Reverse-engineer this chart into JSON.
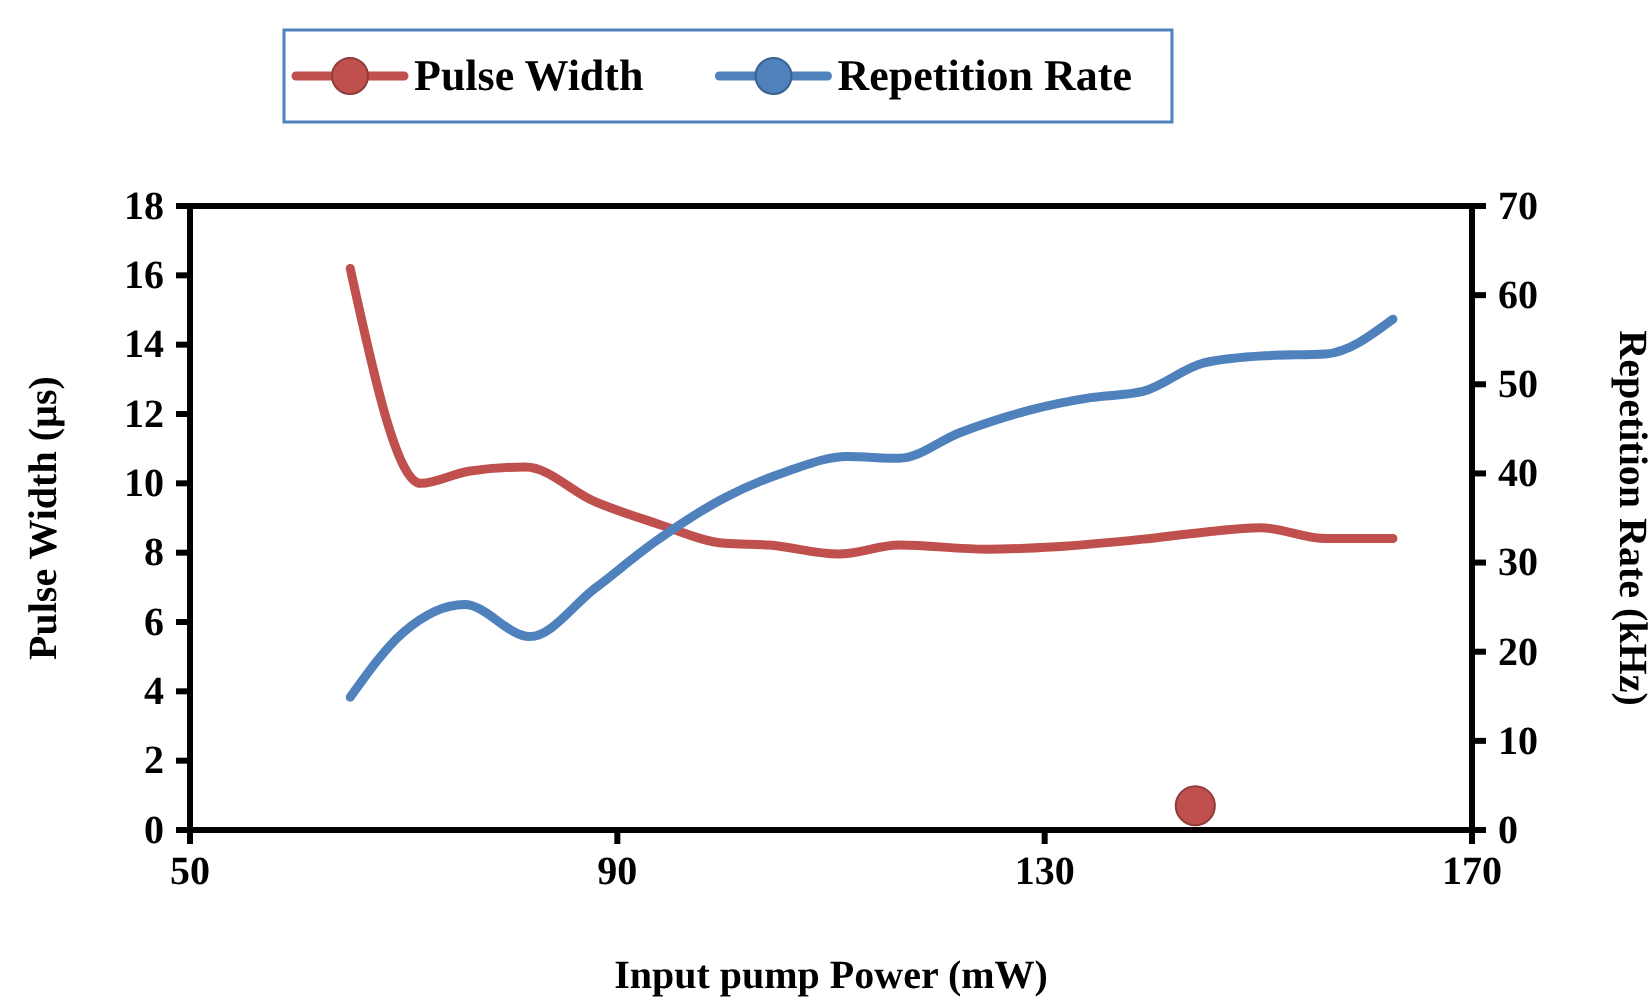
{
  "chart_data": {
    "type": "line",
    "xlabel": "Input pump Power (mW)",
    "ylabel": "Pulse Width (µs)",
    "y2label": "Repetition Rate (kHz)",
    "xlim": [
      50,
      170
    ],
    "xticks": [
      50,
      90,
      130,
      170
    ],
    "ylim": [
      0,
      18
    ],
    "yticks": [
      0,
      2,
      4,
      6,
      8,
      10,
      12,
      14,
      16,
      18
    ],
    "y2lim": [
      0,
      70
    ],
    "y2ticks": [
      0,
      10,
      20,
      30,
      40,
      50,
      60,
      70
    ],
    "grid": false,
    "legend": "top",
    "marker": "none",
    "line_style": "solid",
    "series": [
      {
        "name": "Pulse Width",
        "color": "#c0504d",
        "x": [
          65,
          71.6,
          76.1,
          81.4,
          87.9,
          93.6,
          100.1,
          104.2,
          110.7,
          116.4,
          124.6,
          131.1,
          139.2,
          144.9,
          150.2,
          156.3,
          162.6
        ],
        "values": [
          16.2,
          10.0,
          10.35,
          10.47,
          9.47,
          8.85,
          8.27,
          8.22,
          7.96,
          8.22,
          8.1,
          8.17,
          8.39,
          8.59,
          8.72,
          8.41,
          8.41
        ]
      },
      {
        "name": "Repetition Rate",
        "color": "#4f81bd",
        "axis": "y2",
        "x": [
          65,
          70,
          75.7,
          81.8,
          87.9,
          93.6,
          100.1,
          105.8,
          111.5,
          116.4,
          122.1,
          128.6,
          134.3,
          139.2,
          144.9,
          150.6,
          156.3,
          162.6
        ],
        "values": [
          14.9,
          22.2,
          25.3,
          21.7,
          27.1,
          32.4,
          37.3,
          40.2,
          41.9,
          41.7,
          44.6,
          47.1,
          48.5,
          49.2,
          52.4,
          53.2,
          53.4,
          57.3
        ]
      },
      {
        "type": "scatter",
        "color": "#c0504d",
        "marker": "circle",
        "x": [
          144.1
        ],
        "values": [
          0.7
        ]
      }
    ]
  }
}
